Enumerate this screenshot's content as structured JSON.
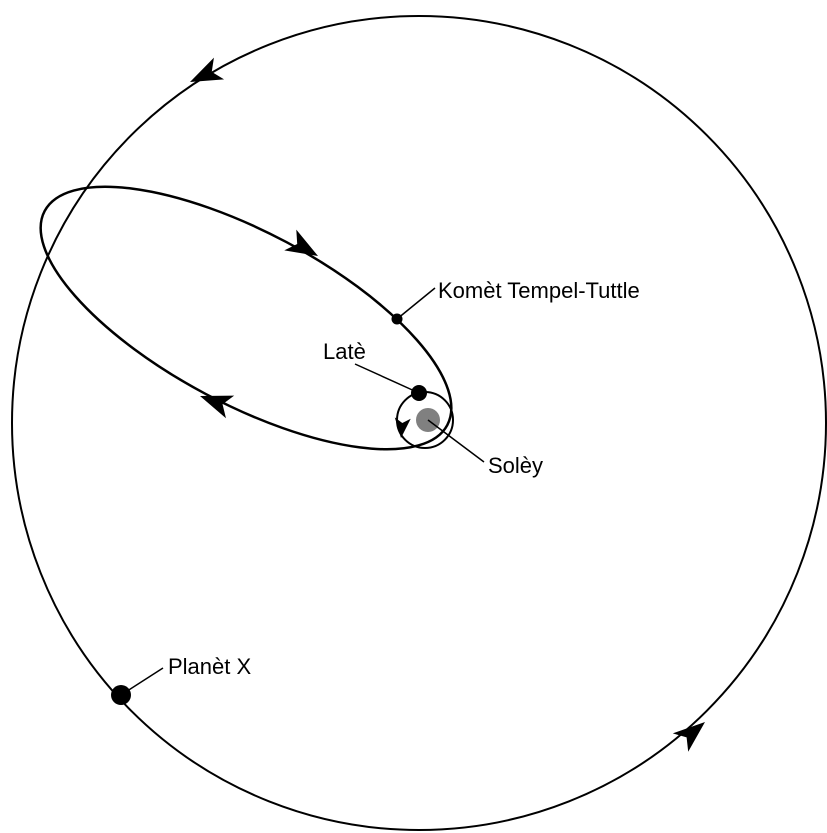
{
  "labels": {
    "comet": "Komèt Tempel-Tuttle",
    "earth": "Latè",
    "sun": "Solèy",
    "planet": "Planèt X"
  }
}
